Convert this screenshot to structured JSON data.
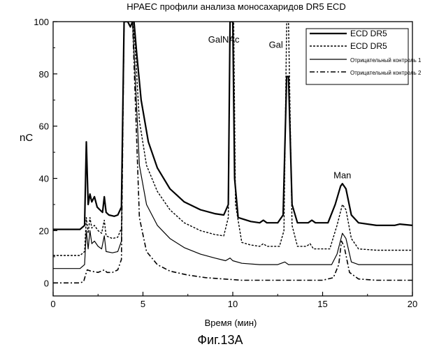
{
  "chart_data": {
    "type": "line",
    "title": "HPAEC профили анализа моносахаридов DR5 ECD",
    "xlabel": "Время   (мин)",
    "ylabel": "nC",
    "caption": "Фиг.13А",
    "xlim": [
      0,
      20
    ],
    "ylim": [
      -5,
      100
    ],
    "x_ticks": [
      0,
      5,
      10,
      15,
      20
    ],
    "y_ticks": [
      0,
      20,
      40,
      60,
      80,
      100
    ],
    "grid": false,
    "legend_position": "top-right",
    "annotations": [
      {
        "text": "GalNAc",
        "x": 9.5,
        "y": 92
      },
      {
        "text": "Gal",
        "x": 12.4,
        "y": 90
      },
      {
        "text": "Man",
        "x": 16.1,
        "y": 40
      }
    ],
    "series": [
      {
        "name": "ECD DR5",
        "style": "solid-thick",
        "points": [
          [
            0,
            20.5
          ],
          [
            1.5,
            20.5
          ],
          [
            1.75,
            22
          ],
          [
            1.85,
            54
          ],
          [
            1.95,
            30
          ],
          [
            2.05,
            34
          ],
          [
            2.15,
            31
          ],
          [
            2.3,
            33
          ],
          [
            2.45,
            29
          ],
          [
            2.6,
            28
          ],
          [
            2.75,
            27
          ],
          [
            2.85,
            33
          ],
          [
            2.95,
            27
          ],
          [
            3.1,
            26
          ],
          [
            3.4,
            25.5
          ],
          [
            3.6,
            26
          ],
          [
            3.8,
            29
          ],
          [
            3.95,
            100
          ],
          [
            4.15,
            100
          ],
          [
            4.3,
            98
          ],
          [
            4.42,
            100
          ],
          [
            4.5,
            100
          ],
          [
            4.65,
            88
          ],
          [
            4.9,
            70
          ],
          [
            5.3,
            54
          ],
          [
            5.8,
            44
          ],
          [
            6.5,
            36
          ],
          [
            7.3,
            31
          ],
          [
            8.2,
            28
          ],
          [
            9.0,
            26.5
          ],
          [
            9.5,
            26
          ],
          [
            9.75,
            30
          ],
          [
            9.85,
            100
          ],
          [
            10.0,
            100
          ],
          [
            10.1,
            40
          ],
          [
            10.3,
            25
          ],
          [
            11.0,
            23.5
          ],
          [
            11.5,
            23
          ],
          [
            11.7,
            24
          ],
          [
            11.9,
            23
          ],
          [
            12.5,
            23
          ],
          [
            12.8,
            26
          ],
          [
            13.0,
            79
          ],
          [
            13.1,
            79
          ],
          [
            13.3,
            30
          ],
          [
            13.6,
            23
          ],
          [
            14.2,
            23
          ],
          [
            14.4,
            24
          ],
          [
            14.6,
            23
          ],
          [
            15.3,
            23
          ],
          [
            15.7,
            30
          ],
          [
            16.0,
            37
          ],
          [
            16.1,
            38
          ],
          [
            16.3,
            36
          ],
          [
            16.6,
            26
          ],
          [
            17,
            23
          ],
          [
            18,
            22
          ],
          [
            19,
            22
          ],
          [
            19.3,
            22.5
          ],
          [
            20,
            22
          ]
        ]
      },
      {
        "name": "ECD DR5",
        "style": "dashed",
        "points": [
          [
            0,
            10.5
          ],
          [
            1.5,
            10.5
          ],
          [
            1.75,
            12
          ],
          [
            1.85,
            25
          ],
          [
            1.95,
            19
          ],
          [
            2.05,
            25
          ],
          [
            2.15,
            21
          ],
          [
            2.3,
            22
          ],
          [
            2.5,
            20
          ],
          [
            2.7,
            19
          ],
          [
            2.85,
            24
          ],
          [
            2.95,
            18
          ],
          [
            3.3,
            17
          ],
          [
            3.6,
            17.5
          ],
          [
            3.8,
            21
          ],
          [
            3.95,
            100
          ],
          [
            4.2,
            100
          ],
          [
            4.42,
            100
          ],
          [
            4.55,
            92
          ],
          [
            4.8,
            62
          ],
          [
            5.2,
            45
          ],
          [
            5.8,
            35
          ],
          [
            6.5,
            28
          ],
          [
            7.3,
            23
          ],
          [
            8.2,
            20
          ],
          [
            9.0,
            18.5
          ],
          [
            9.5,
            18
          ],
          [
            9.75,
            25
          ],
          [
            9.85,
            100
          ],
          [
            10.05,
            100
          ],
          [
            10.15,
            30
          ],
          [
            10.5,
            15.5
          ],
          [
            11,
            14.5
          ],
          [
            11.5,
            14
          ],
          [
            11.7,
            15
          ],
          [
            11.9,
            14
          ],
          [
            12.6,
            14
          ],
          [
            12.85,
            20
          ],
          [
            13.0,
            100
          ],
          [
            13.1,
            100
          ],
          [
            13.3,
            22
          ],
          [
            13.6,
            14
          ],
          [
            14.1,
            14
          ],
          [
            14.3,
            15
          ],
          [
            14.5,
            13
          ],
          [
            15.4,
            13
          ],
          [
            15.8,
            22
          ],
          [
            16.1,
            30
          ],
          [
            16.3,
            28
          ],
          [
            16.6,
            17
          ],
          [
            17,
            13
          ],
          [
            18,
            12.5
          ],
          [
            19,
            12.5
          ],
          [
            20,
            12.5
          ]
        ]
      },
      {
        "name": "Отрицательный контроль 1",
        "style": "solid-thin",
        "points": [
          [
            0,
            5.5
          ],
          [
            1.5,
            5.5
          ],
          [
            1.75,
            7
          ],
          [
            1.85,
            20
          ],
          [
            1.95,
            13
          ],
          [
            2.05,
            20
          ],
          [
            2.15,
            15
          ],
          [
            2.3,
            16
          ],
          [
            2.5,
            14
          ],
          [
            2.7,
            13
          ],
          [
            2.85,
            18
          ],
          [
            2.95,
            12
          ],
          [
            3.3,
            11.5
          ],
          [
            3.6,
            12
          ],
          [
            3.8,
            16
          ],
          [
            3.95,
            100
          ],
          [
            4.2,
            100
          ],
          [
            4.42,
            100
          ],
          [
            4.55,
            82
          ],
          [
            4.8,
            45
          ],
          [
            5.2,
            30
          ],
          [
            5.8,
            22
          ],
          [
            6.5,
            17
          ],
          [
            7.3,
            13.5
          ],
          [
            8.2,
            11
          ],
          [
            9.0,
            9.5
          ],
          [
            9.6,
            8.5
          ],
          [
            9.85,
            9.5
          ],
          [
            10.0,
            8.5
          ],
          [
            10.5,
            7.5
          ],
          [
            11.5,
            7
          ],
          [
            12.5,
            7
          ],
          [
            12.9,
            8
          ],
          [
            13.1,
            7
          ],
          [
            14,
            7
          ],
          [
            15.5,
            7
          ],
          [
            15.8,
            11
          ],
          [
            16.1,
            19
          ],
          [
            16.3,
            17
          ],
          [
            16.6,
            8
          ],
          [
            17,
            7
          ],
          [
            18,
            7
          ],
          [
            19,
            7
          ],
          [
            20,
            7
          ]
        ]
      },
      {
        "name": "Отрицательный контроль 2",
        "style": "dashdot",
        "points": [
          [
            0,
            0
          ],
          [
            1.5,
            0
          ],
          [
            1.7,
            0.5
          ],
          [
            1.8,
            3
          ],
          [
            1.9,
            5
          ],
          [
            2.1,
            4.5
          ],
          [
            2.5,
            4
          ],
          [
            2.85,
            5
          ],
          [
            3.0,
            4
          ],
          [
            3.3,
            4
          ],
          [
            3.6,
            5
          ],
          [
            3.8,
            9
          ],
          [
            3.95,
            100
          ],
          [
            4.2,
            100
          ],
          [
            4.42,
            100
          ],
          [
            4.55,
            75
          ],
          [
            4.8,
            25
          ],
          [
            5.2,
            12
          ],
          [
            5.8,
            7
          ],
          [
            6.5,
            4.5
          ],
          [
            7.5,
            3
          ],
          [
            8.5,
            2
          ],
          [
            9.5,
            1.5
          ],
          [
            10.5,
            1
          ],
          [
            12,
            1
          ],
          [
            13,
            1
          ],
          [
            14,
            1
          ],
          [
            15,
            1
          ],
          [
            15.6,
            2
          ],
          [
            15.9,
            7
          ],
          [
            16.05,
            16
          ],
          [
            16.2,
            14
          ],
          [
            16.5,
            4
          ],
          [
            17,
            1.5
          ],
          [
            18,
            1
          ],
          [
            19,
            1
          ],
          [
            20,
            1
          ]
        ]
      }
    ]
  }
}
